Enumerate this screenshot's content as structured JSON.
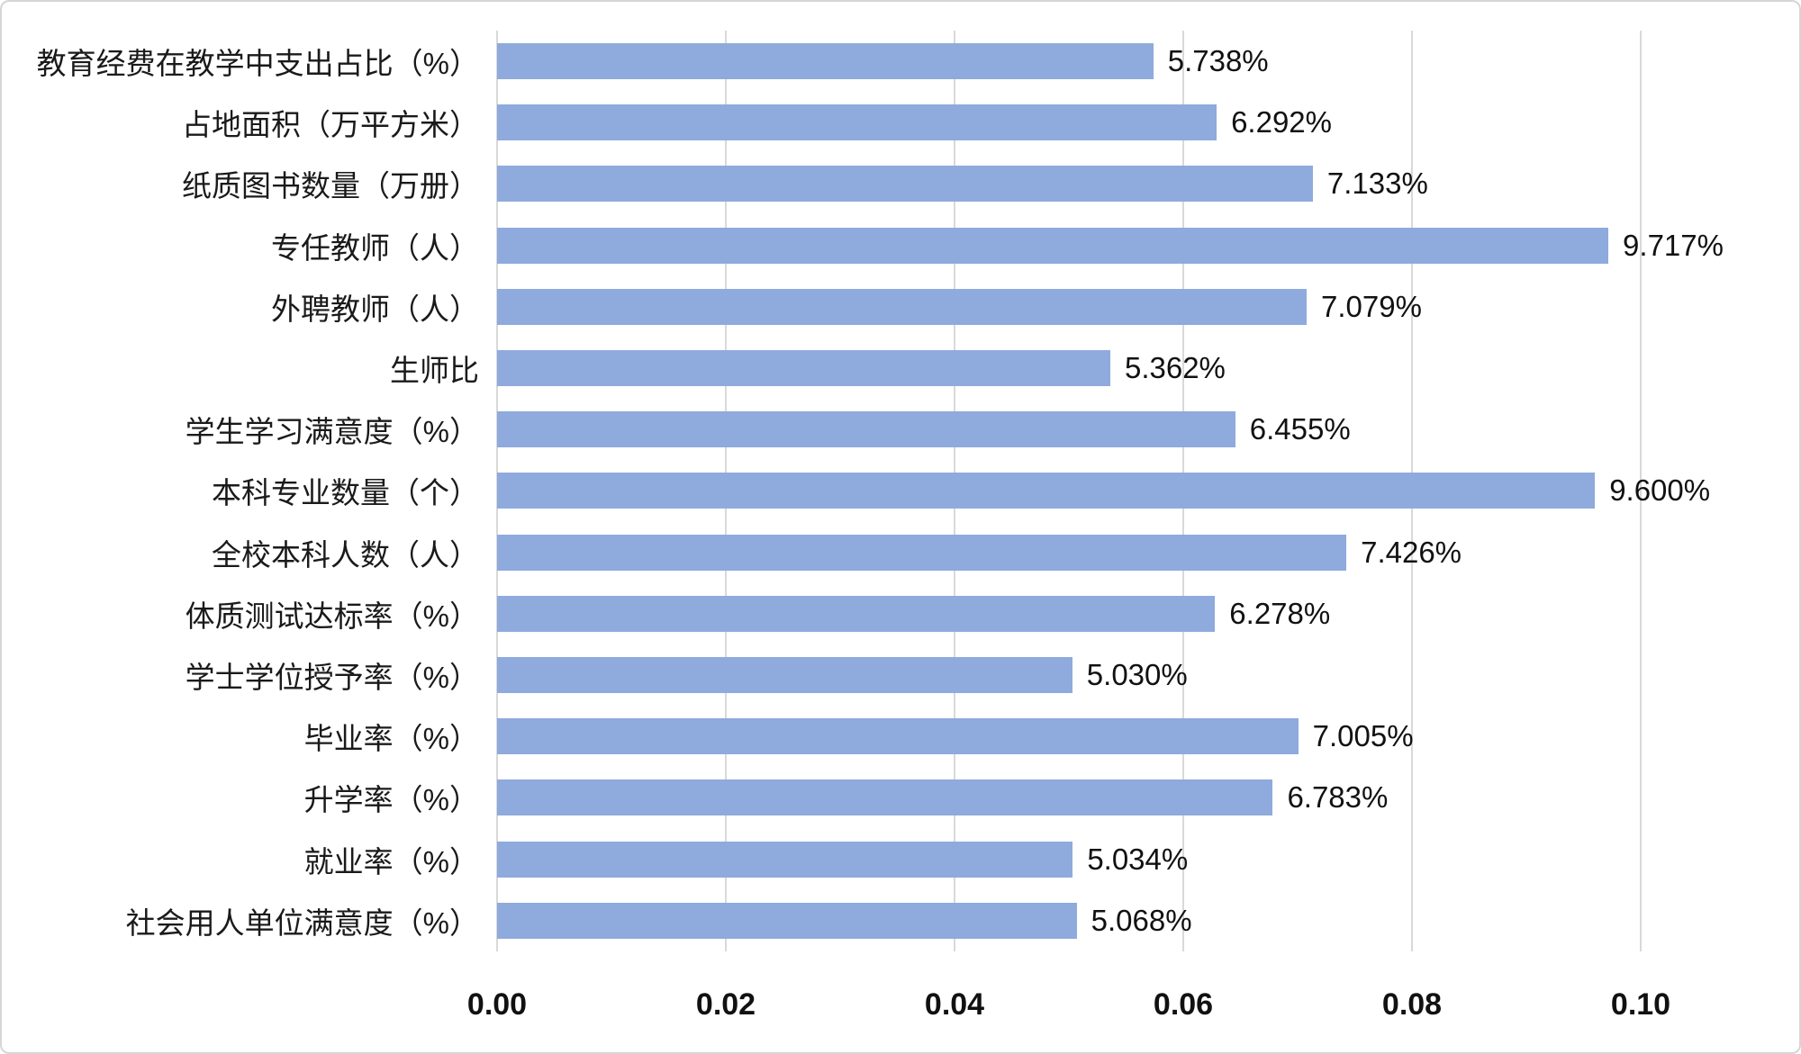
{
  "chart_data": {
    "type": "bar",
    "orientation": "horizontal",
    "title": "",
    "xlabel": "",
    "ylabel": "",
    "legend_position": "none",
    "grid": "vertical",
    "xlim": [
      0,
      0.1
    ],
    "x_ticks": [
      "0.00",
      "0.02",
      "0.04",
      "0.06",
      "0.08",
      "0.10"
    ],
    "bar_color": "#8FAADC",
    "gridline_color": "#D9D9D9",
    "categories": [
      "教育经费在教学中支出占比（%）",
      "占地面积（万平方米）",
      "纸质图书数量（万册）",
      "专任教师（人）",
      "外聘教师（人）",
      "生师比",
      "学生学习满意度（%）",
      "本科专业数量（个）",
      "全校本科人数（人）",
      "体质测试达标率（%）",
      "学士学位授予率（%）",
      "毕业率（%）",
      "升学率（%）",
      "就业率（%）",
      "社会用人单位满意度（%）"
    ],
    "values": [
      5.738,
      6.292,
      7.133,
      9.717,
      7.079,
      5.362,
      6.455,
      9.6,
      7.426,
      6.278,
      5.03,
      7.005,
      6.783,
      5.034,
      5.068
    ],
    "value_labels": [
      "5.738%",
      "6.292%",
      "7.133%",
      "9.717%",
      "7.079%",
      "5.362%",
      "6.455%",
      "9.600%",
      "7.426%",
      "6.278%",
      "5.030%",
      "7.005%",
      "6.783%",
      "5.034%",
      "5.068%"
    ]
  }
}
